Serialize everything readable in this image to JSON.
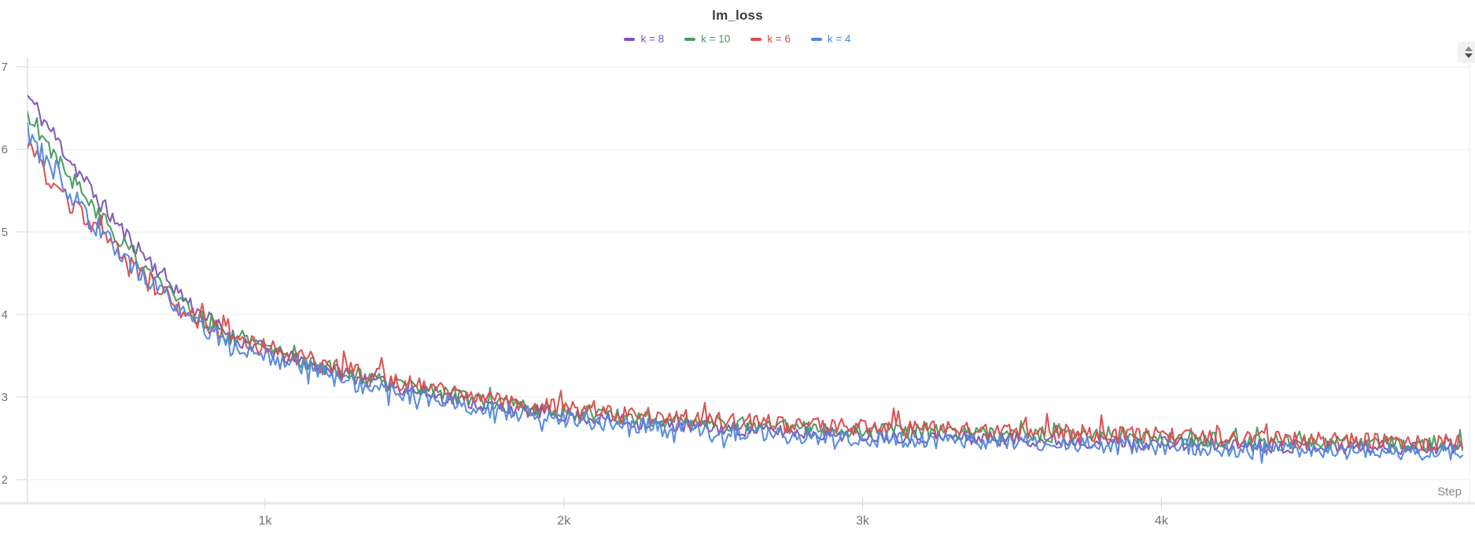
{
  "title": "lm_loss",
  "legend": [
    {
      "label": "k = 8",
      "color": "#7D54B2"
    },
    {
      "label": "k = 10",
      "color": "#479A5F"
    },
    {
      "label": "k = 6",
      "color": "#DA4C4C"
    },
    {
      "label": "k = 4",
      "color": "#5387DD"
    }
  ],
  "x_axis": {
    "label": "Step",
    "ticks": [
      {
        "label": "1k",
        "value": 1000
      },
      {
        "label": "2k",
        "value": 2000
      },
      {
        "label": "3k",
        "value": 3000
      },
      {
        "label": "4k",
        "value": 4000
      }
    ]
  },
  "y_axis": {
    "ticks": [
      {
        "label": "7",
        "value": 7
      },
      {
        "label": "6",
        "value": 6
      },
      {
        "label": "5",
        "value": 5
      },
      {
        "label": "4",
        "value": 4
      },
      {
        "label": "3",
        "value": 3
      },
      {
        "label": "2",
        "value": 2
      }
    ]
  },
  "chart_data": {
    "type": "line",
    "title": "lm_loss",
    "xlabel": "Step",
    "ylabel": "",
    "xlim": [
      205,
      5010
    ],
    "ylim": [
      1.714,
      7.114
    ],
    "grid": "horizontal",
    "legend_position": "top-center",
    "x": [
      205,
      310,
      430,
      535,
      655,
      770,
      905,
      1060,
      1220,
      1375,
      1560,
      1745,
      1955,
      2220,
      2480,
      2745,
      3010,
      3400,
      3800,
      4190,
      4590,
      5010
    ],
    "series": [
      {
        "name": "k = 8",
        "color": "#7D54B2",
        "noise": 0.04,
        "seed": 11,
        "spike": 0.0,
        "values": [
          6.65,
          6.08,
          5.44,
          4.96,
          4.49,
          4.05,
          3.7,
          3.5,
          3.33,
          3.18,
          3.03,
          2.9,
          2.8,
          2.7,
          2.63,
          2.58,
          2.54,
          2.5,
          2.46,
          2.42,
          2.4,
          2.38
        ]
      },
      {
        "name": "k = 10",
        "color": "#479A5F",
        "noise": 0.042,
        "seed": 22,
        "spike": 0.05,
        "values": [
          6.42,
          5.86,
          5.28,
          4.81,
          4.38,
          3.98,
          3.68,
          3.52,
          3.35,
          3.21,
          3.06,
          2.94,
          2.84,
          2.75,
          2.69,
          2.64,
          2.6,
          2.56,
          2.52,
          2.48,
          2.45,
          2.43
        ]
      },
      {
        "name": "k = 6",
        "color": "#DA4C4C",
        "noise": 0.05,
        "seed": 33,
        "spike": 0.07,
        "values": [
          6.0,
          5.48,
          5.02,
          4.62,
          4.26,
          3.92,
          3.7,
          3.54,
          3.37,
          3.23,
          3.09,
          2.97,
          2.87,
          2.78,
          2.72,
          2.67,
          2.63,
          2.59,
          2.55,
          2.5,
          2.46,
          2.44
        ]
      },
      {
        "name": "k = 4",
        "color": "#5387DD",
        "noise": 0.048,
        "seed": 44,
        "spike": -0.05,
        "values": [
          6.22,
          5.67,
          5.09,
          4.66,
          4.28,
          3.89,
          3.6,
          3.43,
          3.25,
          3.1,
          2.97,
          2.85,
          2.76,
          2.66,
          2.59,
          2.54,
          2.5,
          2.46,
          2.42,
          2.38,
          2.35,
          2.33
        ]
      }
    ]
  },
  "colors": {
    "grid": "#ededed",
    "axis": "#e7e7ea",
    "tick": "#d6d6da",
    "tick_label": "#71717a",
    "step_label": "#87878f",
    "title": "#3b3b3f"
  }
}
